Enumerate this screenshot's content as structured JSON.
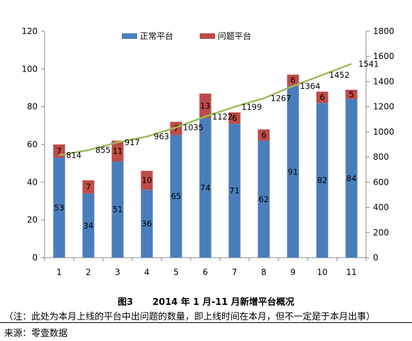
{
  "chart_data": {
    "type": "bar",
    "stacked": true,
    "categories": [
      "1",
      "2",
      "3",
      "4",
      "5",
      "6",
      "7",
      "8",
      "9",
      "10",
      "11"
    ],
    "series": [
      {
        "name": "正常平台",
        "axis": "left",
        "color": "#4a7ebb",
        "values": [
          53,
          34,
          51,
          36,
          65,
          74,
          71,
          62,
          91,
          82,
          84
        ]
      },
      {
        "name": "问题平台",
        "axis": "left",
        "color": "#be4b48",
        "values": [
          7,
          7,
          11,
          10,
          7,
          13,
          6,
          6,
          6,
          6,
          5
        ]
      },
      {
        "type": "line",
        "axis": "right",
        "color": "#9bbb59",
        "values": [
          814,
          855,
          917,
          963,
          1035,
          1122,
          1199,
          1267,
          1364,
          1452,
          1541
        ]
      }
    ],
    "ylim_left": [
      0,
      120
    ],
    "yticks_left": [
      "0",
      "20",
      "40",
      "60",
      "80",
      "100",
      "120"
    ],
    "ylim_right": [
      0,
      1800
    ],
    "yticks_right": [
      "0",
      "200",
      "400",
      "600",
      "800",
      "1000",
      "1200",
      "1400",
      "1600",
      "1800"
    ],
    "legend_position": "top-center",
    "grid": false
  },
  "figure": {
    "number": "图3",
    "title": "2014 年 1 月-11 月新增平台概况",
    "note": "（注：此处为本月上线的平台中出问题的数量，即上线时间在本月，但不一定是于本月出事）",
    "source": "来源：零壹数据"
  }
}
